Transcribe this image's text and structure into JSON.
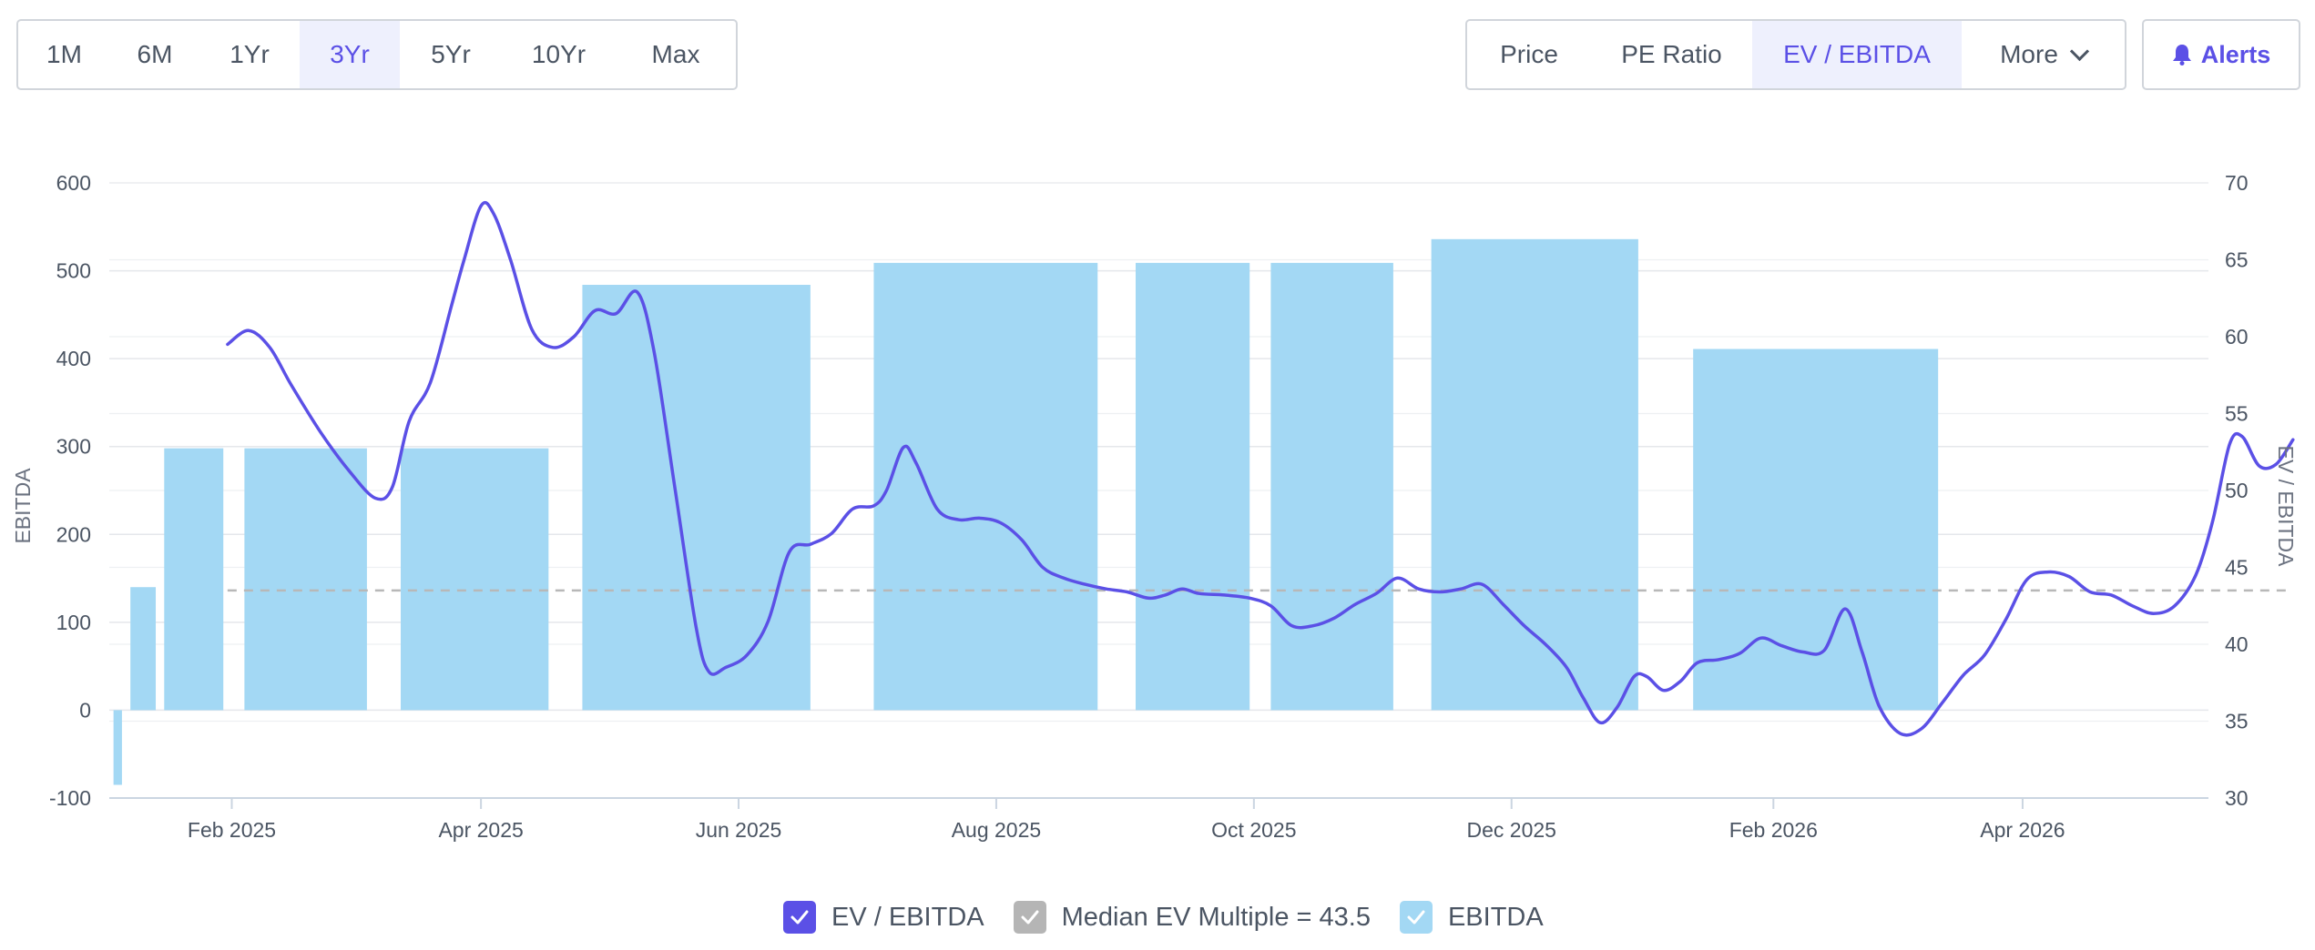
{
  "range_tabs": [
    {
      "label": "1M",
      "active": false
    },
    {
      "label": "6M",
      "active": false
    },
    {
      "label": "1Yr",
      "active": false
    },
    {
      "label": "3Yr",
      "active": true
    },
    {
      "label": "5Yr",
      "active": false
    },
    {
      "label": "10Yr",
      "active": false
    },
    {
      "label": "Max",
      "active": false
    }
  ],
  "metric_tabs": [
    {
      "label": "Price",
      "active": false
    },
    {
      "label": "PE Ratio",
      "active": false
    },
    {
      "label": "EV / EBITDA",
      "active": true
    }
  ],
  "more_label": "More",
  "alerts_label": "Alerts",
  "colors": {
    "line": "#5b50e6",
    "bar": "#a3d8f4",
    "median": "#b8b8b8",
    "accent": "#5b50e6"
  },
  "legend": [
    {
      "label": "EV / EBITDA",
      "color": "#5b50e6"
    },
    {
      "label": "Median EV Multiple = 43.5",
      "color": "#b5b5b5"
    },
    {
      "label": "EBITDA",
      "color": "#a3d8f4"
    }
  ],
  "chart_data": {
    "type": "bar+line",
    "x_range": [
      "2025-01-03",
      "2026-05-15"
    ],
    "x_ticks": [
      {
        "label": "Feb 2025",
        "date": "2025-02-01"
      },
      {
        "label": "Apr 2025",
        "date": "2025-04-01"
      },
      {
        "label": "Jun 2025",
        "date": "2025-06-01"
      },
      {
        "label": "Aug 2025",
        "date": "2025-08-01"
      },
      {
        "label": "Oct 2025",
        "date": "2025-10-01"
      },
      {
        "label": "Dec 2025",
        "date": "2025-12-01"
      },
      {
        "label": "Feb 2026",
        "date": "2026-02-01"
      },
      {
        "label": "Apr 2026",
        "date": "2026-04-01"
      }
    ],
    "y_left": {
      "label": "EBITDA",
      "min": -100,
      "max": 600,
      "ticks": [
        -100,
        0,
        100,
        200,
        300,
        400,
        500,
        600
      ]
    },
    "y_right": {
      "label": "EV / EBITDA",
      "min": 30,
      "max": 70,
      "ticks": [
        30,
        35,
        40,
        45,
        50,
        55,
        60,
        65,
        70
      ]
    },
    "bars": [
      {
        "start": "2025-01-04",
        "end": "2025-01-06",
        "value": -85
      },
      {
        "start": "2025-01-08",
        "end": "2025-01-14",
        "value": 140
      },
      {
        "start": "2025-01-16",
        "end": "2025-01-30",
        "value": 298
      },
      {
        "start": "2025-02-04",
        "end": "2025-03-05",
        "value": 298
      },
      {
        "start": "2025-03-13",
        "end": "2025-04-17",
        "value": 298
      },
      {
        "start": "2025-04-25",
        "end": "2025-06-18",
        "value": 484
      },
      {
        "start": "2025-07-03",
        "end": "2025-08-25",
        "value": 509
      },
      {
        "start": "2025-09-03",
        "end": "2025-09-30",
        "value": 509
      },
      {
        "start": "2025-10-05",
        "end": "2025-11-03",
        "value": 509
      },
      {
        "start": "2025-11-12",
        "end": "2025-12-31",
        "value": 536
      },
      {
        "start": "2026-01-13",
        "end": "2026-03-12",
        "value": 411
      }
    ],
    "median": 43.5,
    "series": [
      {
        "name": "EV / EBITDA",
        "points": [
          [
            "2025-01-31",
            59.5
          ],
          [
            "2025-02-05",
            60.4
          ],
          [
            "2025-02-10",
            59.3
          ],
          [
            "2025-02-15",
            56.9
          ],
          [
            "2025-02-22",
            53.8
          ],
          [
            "2025-03-01",
            51.2
          ],
          [
            "2025-03-07",
            49.5
          ],
          [
            "2025-03-11",
            50.2
          ],
          [
            "2025-03-15",
            54.5
          ],
          [
            "2025-03-20",
            57.0
          ],
          [
            "2025-03-25",
            62.0
          ],
          [
            "2025-03-28",
            65.0
          ],
          [
            "2025-04-01",
            68.5
          ],
          [
            "2025-04-04",
            68.0
          ],
          [
            "2025-04-08",
            65.0
          ],
          [
            "2025-04-13",
            60.5
          ],
          [
            "2025-04-18",
            59.3
          ],
          [
            "2025-04-23",
            60.0
          ],
          [
            "2025-04-28",
            61.7
          ],
          [
            "2025-05-03",
            61.5
          ],
          [
            "2025-05-08",
            62.9
          ],
          [
            "2025-05-12",
            59.0
          ],
          [
            "2025-05-17",
            50.0
          ],
          [
            "2025-05-22",
            41.0
          ],
          [
            "2025-05-25",
            38.2
          ],
          [
            "2025-05-29",
            38.5
          ],
          [
            "2025-06-03",
            39.3
          ],
          [
            "2025-06-08",
            41.5
          ],
          [
            "2025-06-13",
            46.0
          ],
          [
            "2025-06-18",
            46.5
          ],
          [
            "2025-06-23",
            47.2
          ],
          [
            "2025-06-28",
            48.8
          ],
          [
            "2025-07-03",
            49.0
          ],
          [
            "2025-07-06",
            50.0
          ],
          [
            "2025-07-10",
            52.8
          ],
          [
            "2025-07-13",
            51.8
          ],
          [
            "2025-07-18",
            48.8
          ],
          [
            "2025-07-23",
            48.1
          ],
          [
            "2025-07-28",
            48.2
          ],
          [
            "2025-08-02",
            47.9
          ],
          [
            "2025-08-07",
            46.8
          ],
          [
            "2025-08-12",
            45.0
          ],
          [
            "2025-08-17",
            44.3
          ],
          [
            "2025-08-22",
            43.9
          ],
          [
            "2025-08-27",
            43.6
          ],
          [
            "2025-09-01",
            43.4
          ],
          [
            "2025-09-06",
            43.0
          ],
          [
            "2025-09-10",
            43.2
          ],
          [
            "2025-09-14",
            43.6
          ],
          [
            "2025-09-18",
            43.3
          ],
          [
            "2025-09-24",
            43.2
          ],
          [
            "2025-09-30",
            43.0
          ],
          [
            "2025-10-05",
            42.5
          ],
          [
            "2025-10-10",
            41.2
          ],
          [
            "2025-10-15",
            41.2
          ],
          [
            "2025-10-20",
            41.7
          ],
          [
            "2025-10-25",
            42.6
          ],
          [
            "2025-10-30",
            43.3
          ],
          [
            "2025-11-04",
            44.3
          ],
          [
            "2025-11-09",
            43.6
          ],
          [
            "2025-11-14",
            43.4
          ],
          [
            "2025-11-19",
            43.6
          ],
          [
            "2025-11-24",
            43.9
          ],
          [
            "2025-11-29",
            42.6
          ],
          [
            "2025-12-04",
            41.2
          ],
          [
            "2025-12-09",
            40.0
          ],
          [
            "2025-12-14",
            38.5
          ],
          [
            "2025-12-18",
            36.5
          ],
          [
            "2025-12-22",
            34.9
          ],
          [
            "2025-12-26",
            35.9
          ],
          [
            "2025-12-30",
            37.9
          ],
          [
            "2026-01-02",
            37.9
          ],
          [
            "2026-01-06",
            37.0
          ],
          [
            "2026-01-10",
            37.6
          ],
          [
            "2026-01-14",
            38.8
          ],
          [
            "2026-01-19",
            39.0
          ],
          [
            "2026-01-24",
            39.4
          ],
          [
            "2026-01-29",
            40.4
          ],
          [
            "2026-02-03",
            39.9
          ],
          [
            "2026-02-08",
            39.5
          ],
          [
            "2026-02-13",
            39.6
          ],
          [
            "2026-02-18",
            42.3
          ],
          [
            "2026-02-22",
            39.5
          ],
          [
            "2026-02-26",
            36.0
          ],
          [
            "2026-03-03",
            34.2
          ],
          [
            "2026-03-08",
            34.5
          ],
          [
            "2026-03-13",
            36.2
          ],
          [
            "2026-03-18",
            38.0
          ],
          [
            "2026-03-23",
            39.3
          ],
          [
            "2026-03-28",
            41.6
          ],
          [
            "2026-04-02",
            44.2
          ],
          [
            "2026-04-07",
            44.7
          ],
          [
            "2026-04-12",
            44.4
          ],
          [
            "2026-04-17",
            43.4
          ],
          [
            "2026-04-22",
            43.2
          ],
          [
            "2026-04-27",
            42.5
          ],
          [
            "2026-05-02",
            42.0
          ],
          [
            "2026-05-07",
            42.5
          ],
          [
            "2026-05-12",
            44.5
          ],
          [
            "2026-05-16",
            48.0
          ],
          [
            "2026-05-20",
            53.0
          ],
          [
            "2026-05-23",
            53.5
          ],
          [
            "2026-05-27",
            51.6
          ],
          [
            "2026-05-31",
            51.7
          ],
          [
            "2026-06-04",
            53.3
          ]
        ]
      }
    ]
  }
}
